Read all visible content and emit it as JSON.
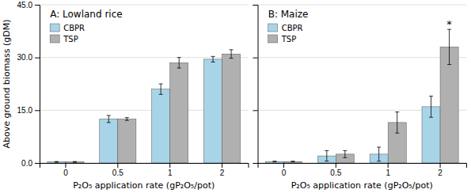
{
  "chart_data": [
    {
      "type": "bar",
      "title": "A: Lowland rice",
      "categories": [
        "0",
        "0.5",
        "1",
        "2"
      ],
      "series": [
        {
          "name": "CBPR",
          "color": "#A8D4E8",
          "values": [
            0.3,
            12.5,
            21.0,
            29.5
          ],
          "errors": [
            0.1,
            1.0,
            1.5,
            0.8
          ]
        },
        {
          "name": "TSP",
          "color": "#B0B0B0",
          "values": [
            0.3,
            12.5,
            28.5,
            31.0
          ],
          "errors": [
            0.1,
            0.4,
            1.5,
            1.2
          ]
        }
      ],
      "ylim": [
        0,
        45
      ],
      "yticks": [
        {
          "value": 0,
          "label": "0.0"
        },
        {
          "value": 15,
          "label": "15.0"
        },
        {
          "value": 30,
          "label": "30.0"
        },
        {
          "value": 45,
          "label": "45.0"
        }
      ],
      "ylabel": "Above ground biomass (gDM)",
      "xlabel": "P₂O₅ application rate (gP₂O₅/pot)",
      "grid": true,
      "legend": "upper left"
    },
    {
      "type": "bar",
      "title": "B: Maize",
      "categories": [
        "0",
        "0.5",
        "1",
        "2"
      ],
      "series": [
        {
          "name": "CBPR",
          "color": "#A8D4E8",
          "values": [
            0.4,
            2.0,
            2.5,
            16.0
          ],
          "errors": [
            0.1,
            1.5,
            2.0,
            3.0
          ]
        },
        {
          "name": "TSP",
          "color": "#B0B0B0",
          "values": [
            0.4,
            2.5,
            11.5,
            33.0
          ],
          "errors": [
            0.1,
            1.0,
            3.0,
            5.0
          ]
        }
      ],
      "ylim": [
        0,
        45
      ],
      "yticks": [
        0,
        15,
        30,
        45
      ],
      "xlabel": "P₂O₅ application rate (gP₂O₅/pot)",
      "grid": true,
      "legend": "upper left",
      "tick_labels": "x",
      "annotations": [
        {
          "text": "*",
          "series": "TSP",
          "category": "2"
        }
      ]
    }
  ]
}
